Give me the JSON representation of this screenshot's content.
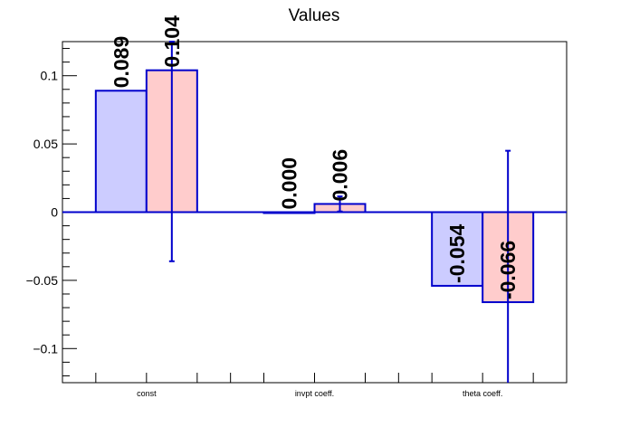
{
  "chart_data": {
    "type": "bar",
    "title": "Values",
    "categories": [
      "const",
      "invpt coeff.",
      "theta coeff."
    ],
    "series": [
      {
        "values": [
          0.089,
          0.0,
          -0.054
        ],
        "labels": [
          "0.089",
          "0.000",
          "-0.054"
        ],
        "fill": "#ccccff",
        "error_low": [
          null,
          null,
          null
        ],
        "error_high": [
          null,
          null,
          null
        ]
      },
      {
        "values": [
          0.104,
          0.006,
          -0.066
        ],
        "labels": [
          "0.104",
          "0.006",
          "-0.066"
        ],
        "fill": "#ffcccc",
        "error_low": [
          -0.036,
          0.0005,
          -0.125
        ],
        "error_high": [
          0.125,
          0.0115,
          0.045
        ]
      }
    ],
    "ylim": [
      -0.125,
      0.125
    ],
    "yticks": [
      -0.1,
      -0.05,
      0,
      0.05,
      0.1
    ],
    "ytick_labels": [
      "−0.1",
      "−0.05",
      "0",
      "0.05",
      "0.1"
    ],
    "grid": false,
    "colors": {
      "bar_edge": "#0000cc",
      "axis": "#000000"
    }
  }
}
